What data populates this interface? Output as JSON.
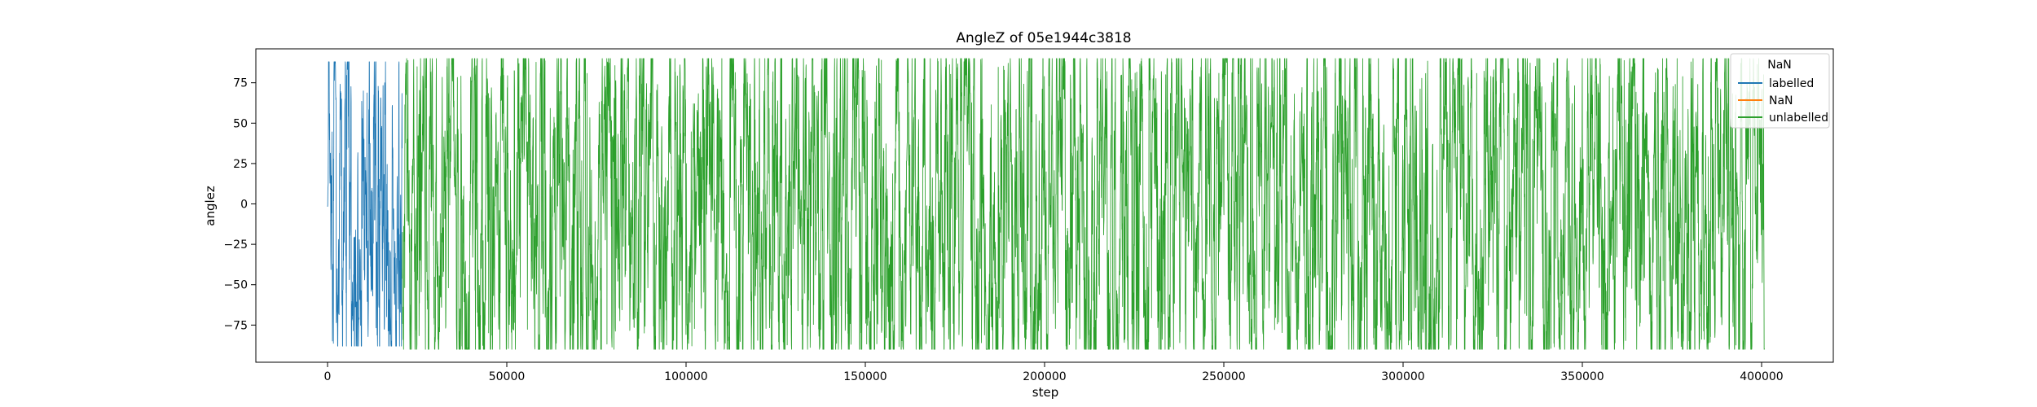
{
  "chart_data": {
    "type": "line",
    "title": "AngleZ of 05e1944c3818",
    "xlabel": "step",
    "ylabel": "anglez",
    "xlim": [
      -20000,
      420000
    ],
    "ylim": [
      -98,
      96
    ],
    "x_ticks": [
      0,
      50000,
      100000,
      150000,
      200000,
      250000,
      300000,
      350000,
      400000
    ],
    "x_tick_labels": [
      "0",
      "50000",
      "100000",
      "150000",
      "200000",
      "250000",
      "300000",
      "350000",
      "400000"
    ],
    "y_ticks": [
      75,
      50,
      25,
      0,
      -25,
      -50,
      -75
    ],
    "y_tick_labels": [
      "75",
      "50",
      "25",
      "0",
      "−25",
      "−50",
      "−75"
    ],
    "grid": false,
    "legend": {
      "title": "NaN",
      "placement": "top-right",
      "entries": [
        "labelled",
        "NaN",
        "unlabelled"
      ]
    },
    "series": [
      {
        "name": "labelled",
        "color": "#1f77b4",
        "x_range": [
          0,
          20800
        ],
        "values_range": [
          -88,
          88
        ],
        "style": "dense oscillating signal"
      },
      {
        "name": "NaN",
        "color": "#ff7f0e",
        "x_range": [],
        "values_range": [],
        "style": "no visible data"
      },
      {
        "name": "unlabelled",
        "color": "#2ca02c",
        "x_range": [
          20800,
          400800
        ],
        "values_range": [
          -90,
          90
        ],
        "style": "dense oscillating signal"
      }
    ]
  }
}
